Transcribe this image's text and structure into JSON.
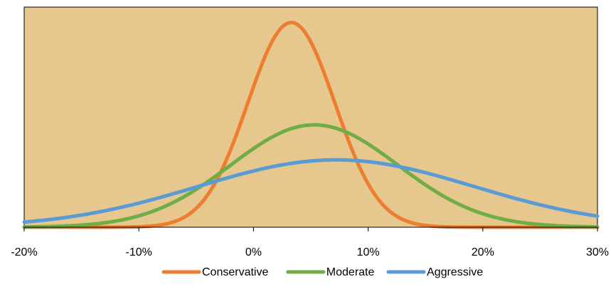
{
  "chart_data": {
    "type": "line",
    "title": "",
    "xlabel": "",
    "ylabel": "",
    "xlim": [
      -20,
      30
    ],
    "x_ticks": [
      -20,
      -10,
      0,
      10,
      20,
      30
    ],
    "x_tick_labels": [
      "-20%",
      "-10%",
      "0%",
      "10%",
      "20%",
      "30%"
    ],
    "y_axis_visible": false,
    "grid": false,
    "plot_background": "#E6C88E",
    "legend_position": "bottom",
    "series": [
      {
        "name": "Conservative",
        "color": "#ED7D31",
        "distribution": "normal",
        "mean": 3.3,
        "stdev": 3.8,
        "peak": 0.093
      },
      {
        "name": "Moderate",
        "color": "#70AD47",
        "distribution": "normal",
        "mean": 5.3,
        "stdev": 7.3,
        "peak": 0.0465
      },
      {
        "name": "Aggressive",
        "color": "#5B9BD5",
        "distribution": "normal",
        "mean": 7.2,
        "stdev": 12.0,
        "peak": 0.0306
      }
    ]
  }
}
